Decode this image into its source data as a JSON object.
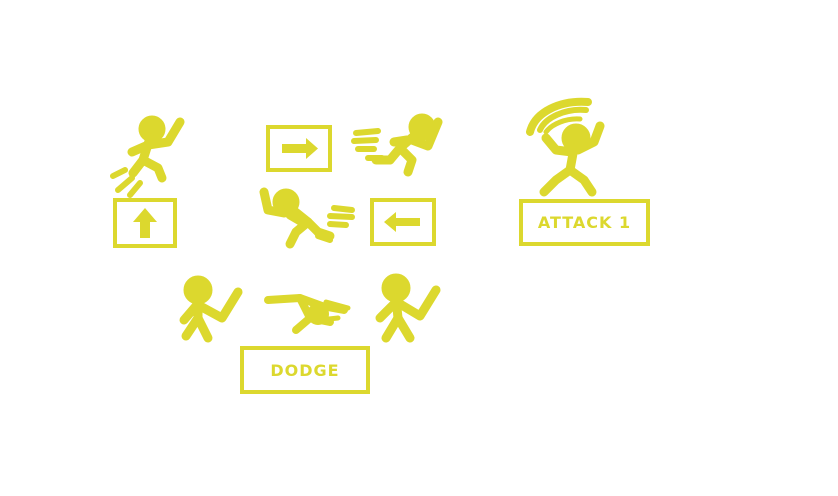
{
  "theme": {
    "ink_color": "#dcd82e",
    "background": "#ffffff"
  },
  "controls": {
    "jump": {
      "key_icon": "up-arrow-icon"
    },
    "move_right": {
      "key_icon": "right-arrow-icon"
    },
    "move_left": {
      "key_icon": "left-arrow-icon"
    },
    "attack": {
      "label": "ATTACK 1"
    },
    "dodge": {
      "label": "DODGE"
    }
  }
}
